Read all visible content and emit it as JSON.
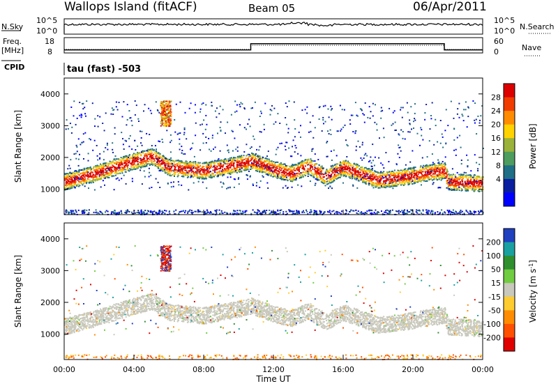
{
  "header": {
    "station": "Wallops Island (fitACF)",
    "beam": "Beam 05",
    "date": "06/Apr/2011"
  },
  "top_panels": {
    "nsky_label": "N.Sky",
    "nsky_ticks": [
      "10^5",
      "10^0"
    ],
    "nsearch_label": "N.Search",
    "nsearch_ticks": [
      "10^5",
      "10^0"
    ],
    "freq_label": "Freq.",
    "freq_unit": "[MHz]",
    "freq_ticks": [
      "18",
      "8"
    ],
    "nave_label": "Nave",
    "nave_ticks": [
      "60",
      "0"
    ],
    "cpid_label": "CPID",
    "cpid_value": "tau (fast) -503",
    "freq_steps": [
      {
        "t_start": 0.0,
        "t_end": 10.7,
        "mhz": 10.0
      },
      {
        "t_start": 10.7,
        "t_end": 21.8,
        "mhz": 14.0
      },
      {
        "t_start": 21.8,
        "t_end": 24.0,
        "mhz": 10.0
      }
    ],
    "nave_level": [
      {
        "t_start": 0.0,
        "t_end": 10.7,
        "value": 14
      },
      {
        "t_start": 10.7,
        "t_end": 21.8,
        "value": 30
      },
      {
        "t_start": 21.8,
        "t_end": 24.0,
        "value": 14
      }
    ]
  },
  "chart_data": [
    {
      "type": "heatmap",
      "name": "power",
      "ylabel": "Slant Range [km]",
      "ylim": [
        200,
        4500
      ],
      "yticks": [
        "1000",
        "2000",
        "3000",
        "4000"
      ],
      "xlim": [
        0,
        24
      ],
      "colorbar_label": "Power [dB]",
      "colorbar_ticks": [
        "28",
        "24",
        "20",
        "16",
        "12",
        "8",
        "4"
      ],
      "colorbar_colors": [
        "#dc0000",
        "#f03c00",
        "#ff8c00",
        "#ffd200",
        "#9ab23a",
        "#4e9c5e",
        "#1f6f86",
        "#0a1ea0",
        "#0000ff"
      ],
      "band_center_km": [
        {
          "t": 0.0,
          "r": 1250
        },
        {
          "t": 2.0,
          "r": 1550
        },
        {
          "t": 4.0,
          "r": 1900
        },
        {
          "t": 5.0,
          "r": 2050
        },
        {
          "t": 6.0,
          "r": 1700
        },
        {
          "t": 8.0,
          "r": 1600
        },
        {
          "t": 9.5,
          "r": 1750
        },
        {
          "t": 10.7,
          "r": 1900
        },
        {
          "t": 12.0,
          "r": 1650
        },
        {
          "t": 13.0,
          "r": 1500
        },
        {
          "t": 14.0,
          "r": 1750
        },
        {
          "t": 15.0,
          "r": 1400
        },
        {
          "t": 16.0,
          "r": 1700
        },
        {
          "t": 17.0,
          "r": 1500
        },
        {
          "t": 18.0,
          "r": 1300
        },
        {
          "t": 19.5,
          "r": 1400
        },
        {
          "t": 21.0,
          "r": 1550
        },
        {
          "t": 21.8,
          "r": 1600
        },
        {
          "t": 22.0,
          "r": 1250
        },
        {
          "t": 24.0,
          "r": 1200
        }
      ]
    },
    {
      "type": "heatmap",
      "name": "velocity",
      "ylabel": "Slant Range [km]",
      "ylim": [
        200,
        4500
      ],
      "yticks": [
        "1000",
        "2000",
        "3000",
        "4000"
      ],
      "xlim": [
        0,
        24
      ],
      "xlabel": "Time UT",
      "xticks": [
        "00:00",
        "04:00",
        "08:00",
        "12:00",
        "16:00",
        "20:00",
        "00:00"
      ],
      "colorbar_label": "Velocity [m s",
      "colorbar_label_sup": "-1",
      "colorbar_label_end": "]",
      "colorbar_ticks": [
        "200",
        "100",
        "50",
        "15",
        "-15",
        "-50",
        "-100",
        "-200"
      ],
      "colorbar_colors": [
        "#2040c0",
        "#1aa0a0",
        "#2f8f2f",
        "#70cc40",
        "#c8c8bc",
        "#ffcc30",
        "#ff8c00",
        "#ff5000",
        "#e00000"
      ]
    }
  ]
}
